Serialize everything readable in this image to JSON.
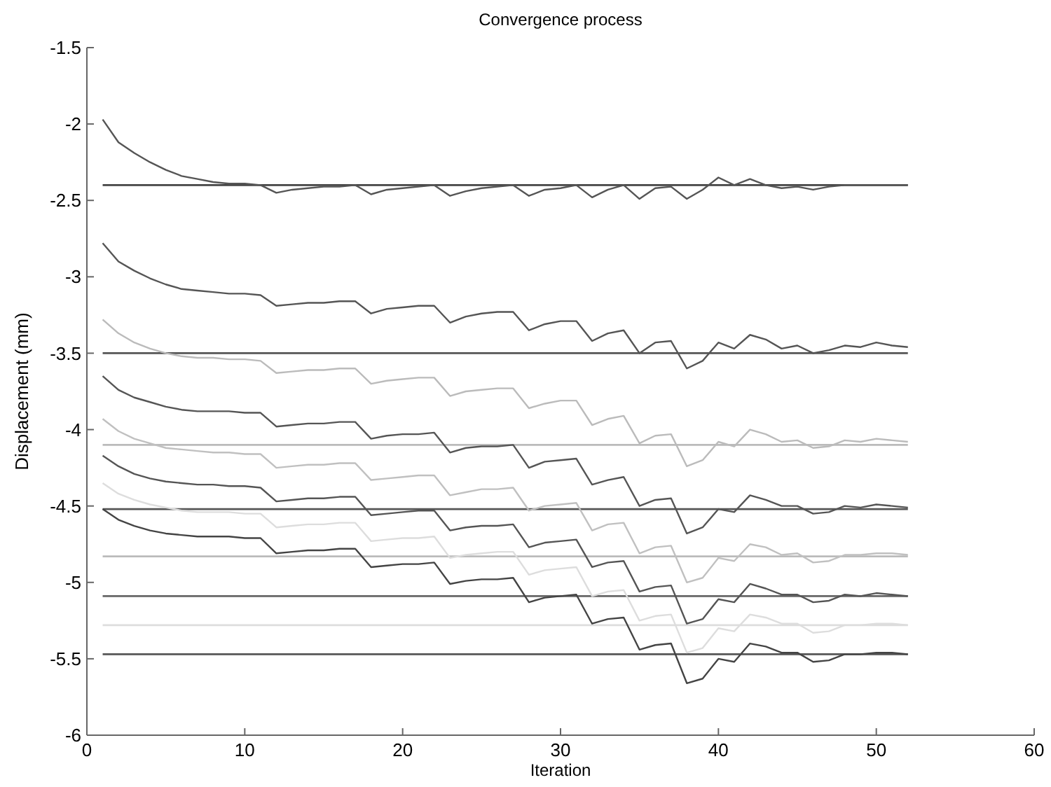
{
  "chart_data": {
    "type": "line",
    "title": "Convergence process",
    "xlabel": "Iteration",
    "ylabel": "Displacement (mm)",
    "x": [
      1,
      2,
      3,
      4,
      5,
      6,
      7,
      8,
      9,
      10,
      11,
      12,
      13,
      14,
      15,
      16,
      17,
      18,
      19,
      20,
      21,
      22,
      23,
      24,
      25,
      26,
      27,
      28,
      29,
      30,
      31,
      32,
      33,
      34,
      35,
      36,
      37,
      38,
      39,
      40,
      41,
      42,
      43,
      44,
      45,
      46,
      47,
      48,
      49,
      50,
      51,
      52
    ],
    "xlim": [
      0,
      60
    ],
    "xticks": [
      0,
      10,
      20,
      30,
      40,
      50,
      60
    ],
    "ylim": [
      -6,
      -1.5
    ],
    "yticks": [
      -6,
      -5.5,
      -5,
      -4.5,
      -4,
      -3.5,
      -3,
      -2.5,
      -2,
      -1.5
    ],
    "marker": "none",
    "line_style": "solid",
    "series": [
      {
        "color": "#555555",
        "values": [
          -1.97,
          -2.12,
          -2.19,
          -2.25,
          -2.3,
          -2.34,
          -2.36,
          -2.38,
          -2.39,
          -2.39,
          -2.4,
          -2.45,
          -2.43,
          -2.42,
          -2.41,
          -2.41,
          -2.4,
          -2.46,
          -2.43,
          -2.42,
          -2.41,
          -2.4,
          -2.47,
          -2.44,
          -2.42,
          -2.41,
          -2.4,
          -2.47,
          -2.43,
          -2.42,
          -2.4,
          -2.48,
          -2.43,
          -2.4,
          -2.49,
          -2.42,
          -2.41,
          -2.49,
          -2.43,
          -2.35,
          -2.4,
          -2.36,
          -2.4,
          -2.42,
          -2.41,
          -2.43,
          -2.41,
          -2.4,
          -2.4,
          -2.4,
          -2.4,
          -2.4
        ]
      },
      {
        "color": "#555555",
        "values": [
          -2.78,
          -2.9,
          -2.96,
          -3.01,
          -3.05,
          -3.08,
          -3.09,
          -3.1,
          -3.11,
          -3.11,
          -3.12,
          -3.19,
          -3.18,
          -3.17,
          -3.17,
          -3.16,
          -3.16,
          -3.24,
          -3.21,
          -3.2,
          -3.19,
          -3.19,
          -3.3,
          -3.26,
          -3.24,
          -3.23,
          -3.23,
          -3.35,
          -3.31,
          -3.29,
          -3.29,
          -3.42,
          -3.37,
          -3.35,
          -3.5,
          -3.43,
          -3.42,
          -3.6,
          -3.55,
          -3.43,
          -3.47,
          -3.38,
          -3.41,
          -3.47,
          -3.45,
          -3.5,
          -3.48,
          -3.45,
          -3.46,
          -3.43,
          -3.45,
          -3.46
        ]
      },
      {
        "color": "#bbbbbb",
        "values": [
          -3.28,
          -3.37,
          -3.43,
          -3.47,
          -3.5,
          -3.52,
          -3.53,
          -3.53,
          -3.54,
          -3.54,
          -3.55,
          -3.63,
          -3.62,
          -3.61,
          -3.61,
          -3.6,
          -3.6,
          -3.7,
          -3.68,
          -3.67,
          -3.66,
          -3.66,
          -3.78,
          -3.75,
          -3.74,
          -3.73,
          -3.73,
          -3.86,
          -3.83,
          -3.81,
          -3.81,
          -3.97,
          -3.93,
          -3.91,
          -4.09,
          -4.04,
          -4.03,
          -4.24,
          -4.2,
          -4.08,
          -4.11,
          -4.0,
          -4.03,
          -4.08,
          -4.07,
          -4.12,
          -4.11,
          -4.07,
          -4.08,
          -4.06,
          -4.07,
          -4.08
        ]
      },
      {
        "color": "#555555",
        "values": [
          -3.65,
          -3.74,
          -3.79,
          -3.82,
          -3.85,
          -3.87,
          -3.88,
          -3.88,
          -3.88,
          -3.89,
          -3.89,
          -3.98,
          -3.97,
          -3.96,
          -3.96,
          -3.95,
          -3.95,
          -4.06,
          -4.04,
          -4.03,
          -4.03,
          -4.02,
          -4.15,
          -4.12,
          -4.11,
          -4.11,
          -4.1,
          -4.25,
          -4.21,
          -4.2,
          -4.19,
          -4.36,
          -4.33,
          -4.31,
          -4.5,
          -4.46,
          -4.45,
          -4.68,
          -4.64,
          -4.52,
          -4.54,
          -4.43,
          -4.46,
          -4.5,
          -4.5,
          -4.55,
          -4.54,
          -4.5,
          -4.51,
          -4.49,
          -4.5,
          -4.51
        ]
      },
      {
        "color": "#c0c0c0",
        "values": [
          -3.93,
          -4.01,
          -4.06,
          -4.09,
          -4.12,
          -4.13,
          -4.14,
          -4.15,
          -4.15,
          -4.16,
          -4.16,
          -4.25,
          -4.24,
          -4.23,
          -4.23,
          -4.22,
          -4.22,
          -4.33,
          -4.32,
          -4.31,
          -4.3,
          -4.3,
          -4.43,
          -4.41,
          -4.39,
          -4.39,
          -4.38,
          -4.53,
          -4.5,
          -4.49,
          -4.48,
          -4.66,
          -4.62,
          -4.61,
          -4.81,
          -4.77,
          -4.76,
          -5.0,
          -4.97,
          -4.84,
          -4.86,
          -4.75,
          -4.77,
          -4.82,
          -4.81,
          -4.87,
          -4.86,
          -4.82,
          -4.82,
          -4.81,
          -4.81,
          -4.82
        ]
      },
      {
        "color": "#555555",
        "values": [
          -4.17,
          -4.24,
          -4.29,
          -4.32,
          -4.34,
          -4.35,
          -4.36,
          -4.36,
          -4.37,
          -4.37,
          -4.38,
          -4.47,
          -4.46,
          -4.45,
          -4.45,
          -4.44,
          -4.44,
          -4.56,
          -4.55,
          -4.54,
          -4.53,
          -4.53,
          -4.66,
          -4.64,
          -4.63,
          -4.63,
          -4.62,
          -4.77,
          -4.74,
          -4.73,
          -4.72,
          -4.9,
          -4.87,
          -4.86,
          -5.06,
          -5.03,
          -5.02,
          -5.27,
          -5.24,
          -5.11,
          -5.13,
          -5.01,
          -5.04,
          -5.08,
          -5.08,
          -5.13,
          -5.12,
          -5.08,
          -5.09,
          -5.07,
          -5.08,
          -5.09
        ]
      },
      {
        "color": "#dddddd",
        "values": [
          -4.35,
          -4.42,
          -4.46,
          -4.49,
          -4.51,
          -4.53,
          -4.54,
          -4.54,
          -4.54,
          -4.55,
          -4.55,
          -4.64,
          -4.63,
          -4.62,
          -4.62,
          -4.61,
          -4.61,
          -4.73,
          -4.72,
          -4.71,
          -4.71,
          -4.7,
          -4.84,
          -4.82,
          -4.81,
          -4.8,
          -4.8,
          -4.95,
          -4.92,
          -4.91,
          -4.9,
          -5.09,
          -5.06,
          -5.05,
          -5.25,
          -5.22,
          -5.21,
          -5.46,
          -5.43,
          -5.3,
          -5.32,
          -5.21,
          -5.23,
          -5.27,
          -5.27,
          -5.33,
          -5.32,
          -5.28,
          -5.28,
          -5.27,
          -5.27,
          -5.28
        ]
      },
      {
        "color": "#444444",
        "values": [
          -4.52,
          -4.59,
          -4.63,
          -4.66,
          -4.68,
          -4.69,
          -4.7,
          -4.7,
          -4.7,
          -4.71,
          -4.71,
          -4.81,
          -4.8,
          -4.79,
          -4.79,
          -4.78,
          -4.78,
          -4.9,
          -4.89,
          -4.88,
          -4.88,
          -4.87,
          -5.01,
          -4.99,
          -4.98,
          -4.98,
          -4.97,
          -5.13,
          -5.1,
          -5.09,
          -5.08,
          -5.27,
          -5.24,
          -5.23,
          -5.44,
          -5.41,
          -5.4,
          -5.66,
          -5.63,
          -5.5,
          -5.52,
          -5.4,
          -5.42,
          -5.46,
          -5.46,
          -5.52,
          -5.51,
          -5.47,
          -5.47,
          -5.46,
          -5.46,
          -5.47
        ]
      }
    ],
    "ref_lines": [
      {
        "axis": "y",
        "value": -2.4,
        "color": "#444444"
      },
      {
        "axis": "y",
        "value": -3.5,
        "color": "#555555"
      },
      {
        "axis": "y",
        "value": -4.1,
        "color": "#bbbbbb"
      },
      {
        "axis": "y",
        "value": -4.52,
        "color": "#555555"
      },
      {
        "axis": "y",
        "value": -4.83,
        "color": "#bbbbbb"
      },
      {
        "axis": "y",
        "value": -5.09,
        "color": "#666666"
      },
      {
        "axis": "y",
        "value": -5.28,
        "color": "#dddddd"
      },
      {
        "axis": "y",
        "value": -5.47,
        "color": "#555555"
      }
    ]
  }
}
